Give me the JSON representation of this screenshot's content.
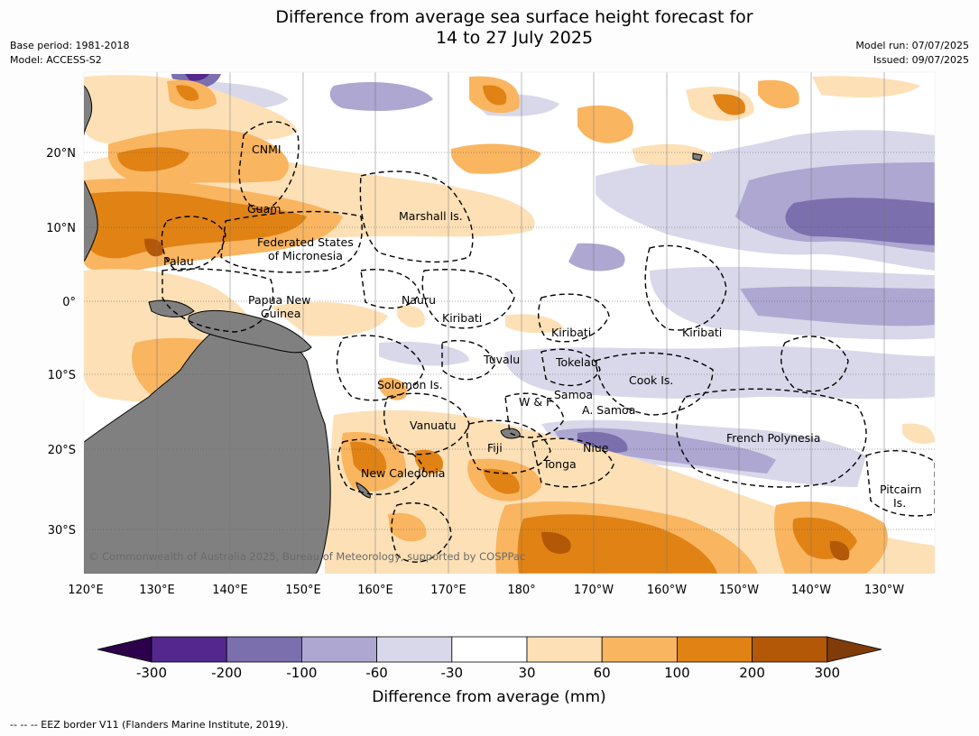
{
  "title_line1": "Difference from average sea surface height forecast for",
  "title_line2": "14 to 27 July 2025",
  "base_period": "Base period: 1981-2018",
  "model": "Model: ACCESS-S2",
  "model_run": "Model run: 07/07/2025",
  "issued": "Issued: 09/07/2025",
  "lon_ticks": [
    "120°E",
    "130°E",
    "140°E",
    "150°E",
    "160°E",
    "170°E",
    "180°",
    "170°W",
    "160°W",
    "150°W",
    "140°W",
    "130°W"
  ],
  "lat_ticks": [
    "20°N",
    "10°N",
    "0°",
    "10°S",
    "20°S",
    "30°S"
  ],
  "region_labels": [
    "CNMI",
    "Guam",
    "Marshall Is.",
    "Federated States",
    "of Micronesia",
    "Palau",
    "Papua New",
    "Guinea",
    "Nauru",
    "Kiribati",
    "Kiribati",
    "Kiribati",
    "Tuvalu",
    "Tokelau",
    "Solomon Is.",
    "Cook Is.",
    "W & F",
    "Samoa",
    "A. Samoa",
    "Vanuatu",
    "Fiji",
    "Niue",
    "French Polynesia",
    "Tonga",
    "New Caledonia",
    "Pitcairn",
    "Is."
  ],
  "copyright": "© Commonwealth of Australia 2025, Bureau of Meteorology, supported by COSPPac",
  "colorbar": {
    "ticks": [
      "-300",
      "-200",
      "-100",
      "-60",
      "-30",
      "30",
      "60",
      "100",
      "200",
      "300"
    ],
    "colors": [
      "#54278f",
      "#7b6fae",
      "#ada7d1",
      "#d9d8ea",
      "#ffffff",
      "#fde0b6",
      "#f9b560",
      "#e08214",
      "#b35806"
    ],
    "under_color": "#2d004b",
    "over_color": "#7f3b08",
    "label": "Difference from average (mm)"
  },
  "footer": "--  --  -- EEZ border V11 (Flanders Marine Institute, 2019)."
}
